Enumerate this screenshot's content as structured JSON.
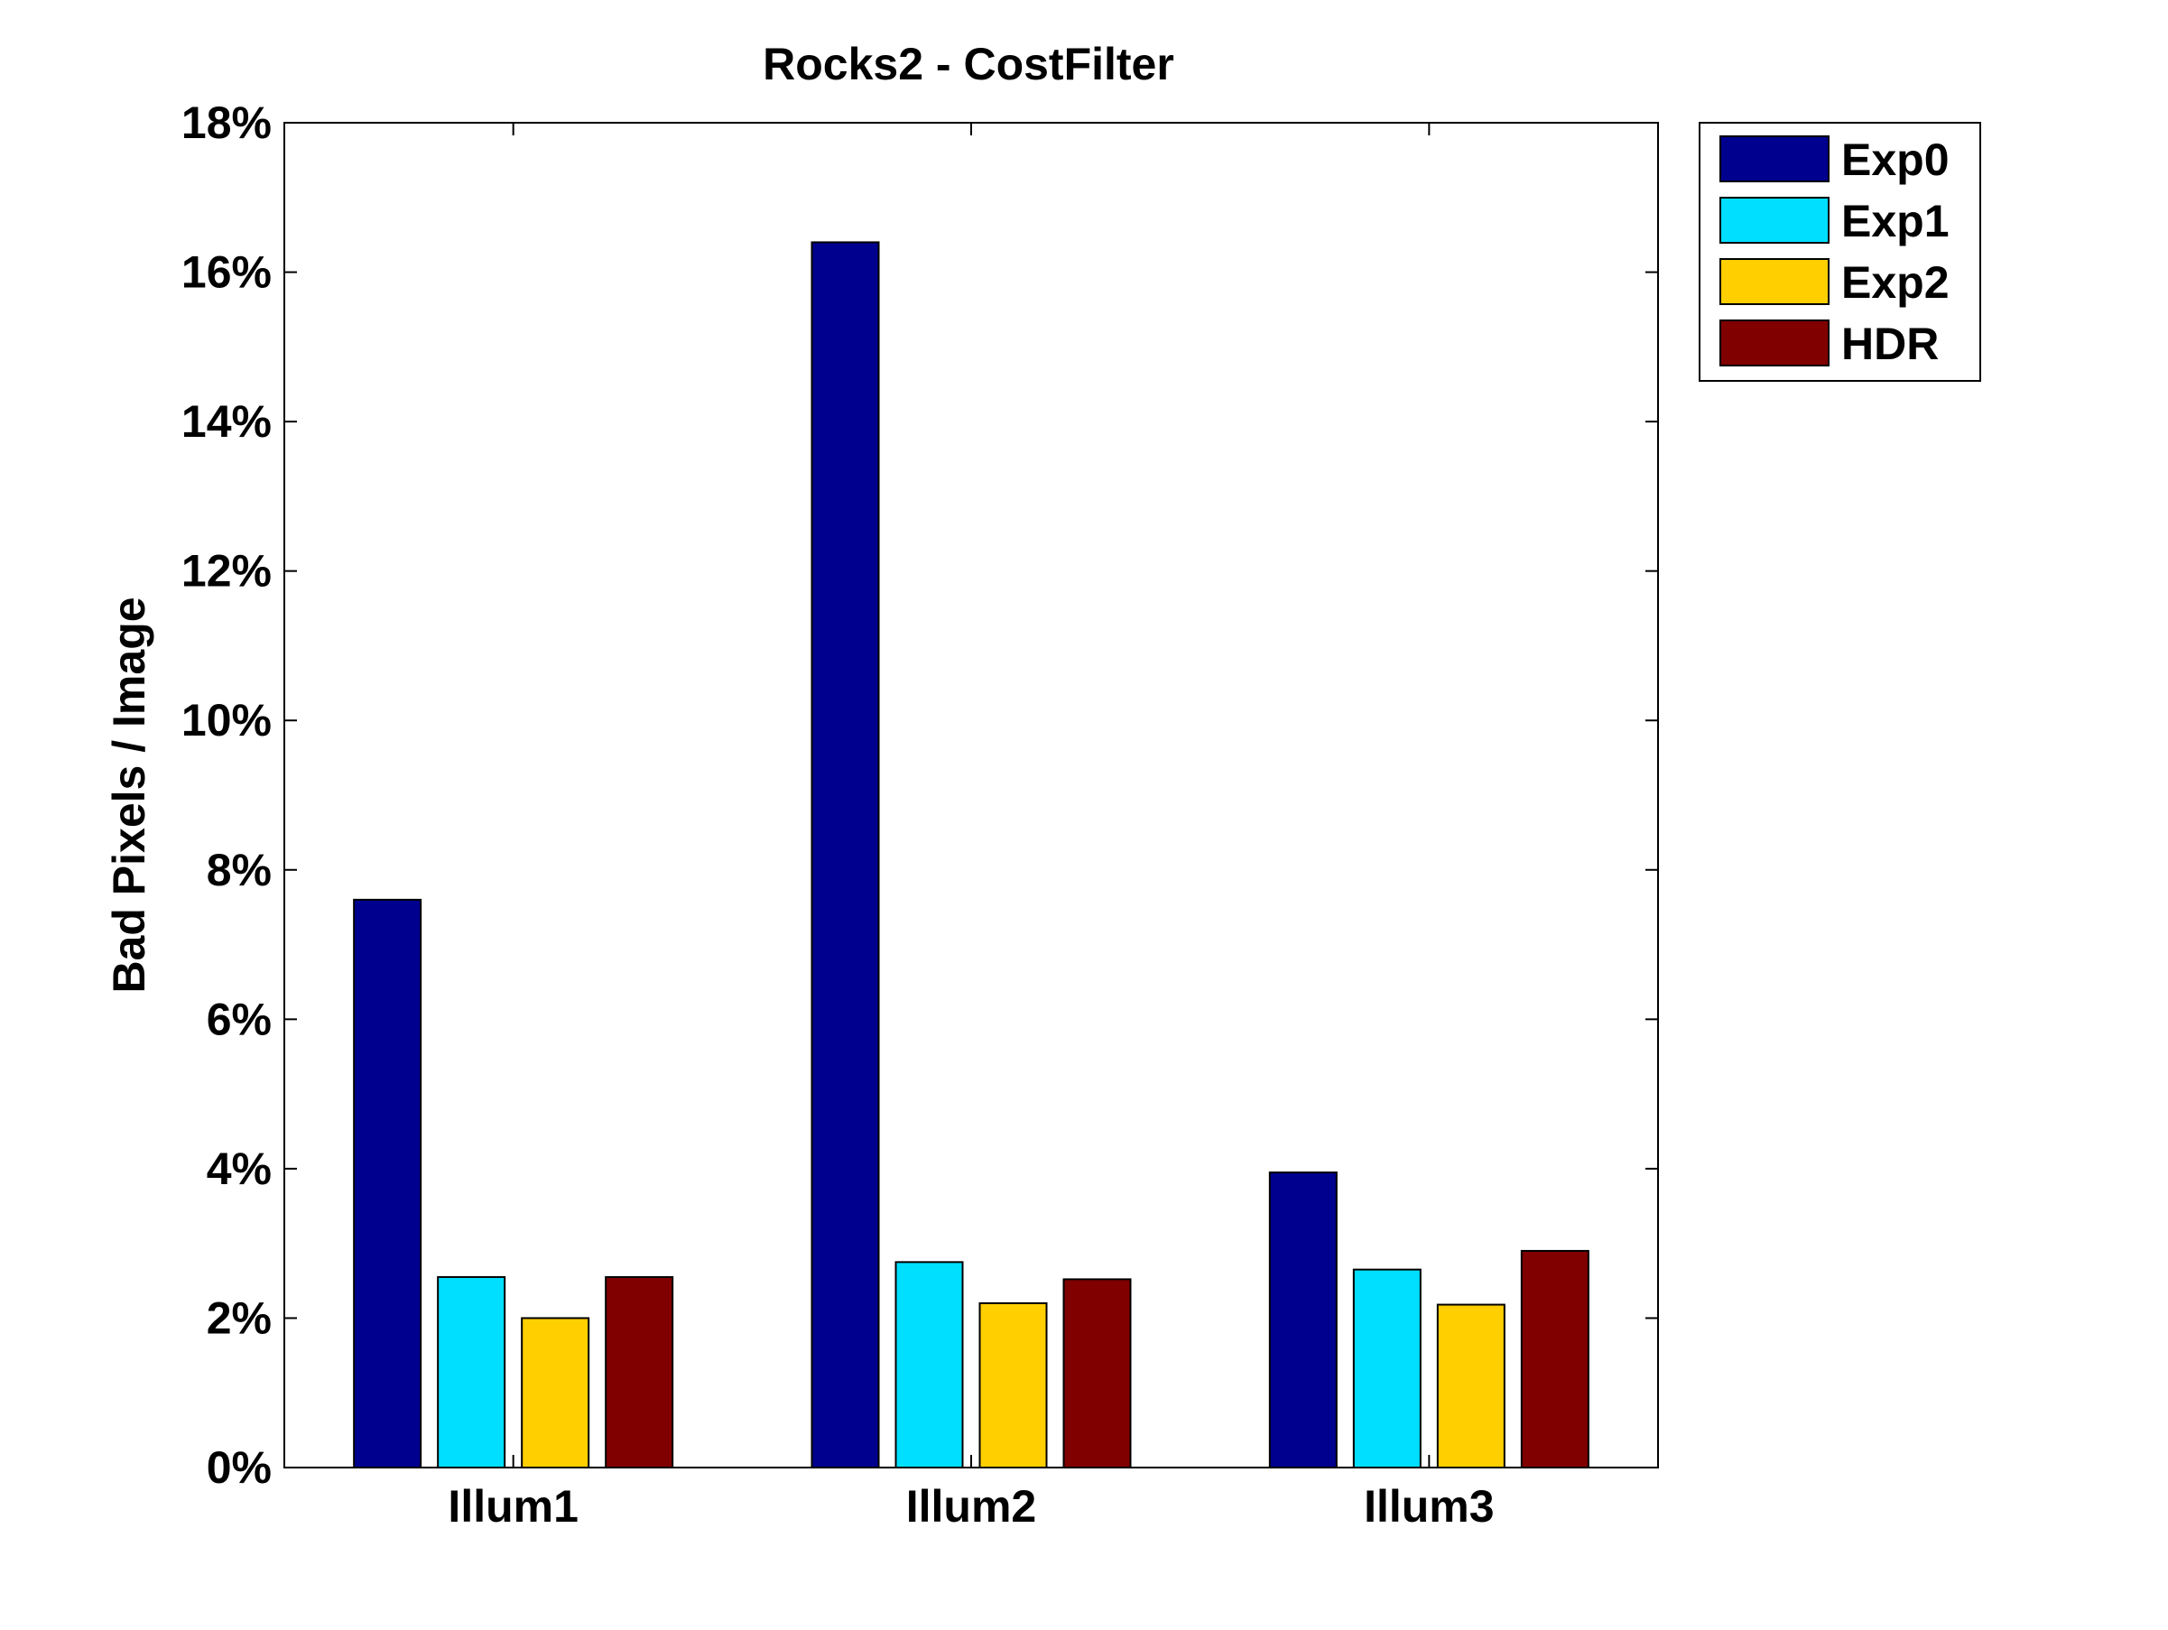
{
  "chart_data": {
    "type": "bar",
    "title": "Rocks2 - CostFilter",
    "xlabel": "",
    "ylabel": "Bad Pixels / Image",
    "categories": [
      "Illum1",
      "Illum2",
      "Illum3"
    ],
    "series": [
      {
        "name": "Exp0",
        "color": "#00008f",
        "values": [
          7.6,
          16.4,
          3.95
        ]
      },
      {
        "name": "Exp1",
        "color": "#00dfff",
        "values": [
          2.55,
          2.75,
          2.65
        ]
      },
      {
        "name": "Exp2",
        "color": "#ffcf00",
        "values": [
          2.0,
          2.2,
          2.18
        ]
      },
      {
        "name": "HDR",
        "color": "#800000",
        "values": [
          2.55,
          2.52,
          2.9
        ]
      }
    ],
    "ylim": [
      0,
      18
    ],
    "yticks": [
      0,
      2,
      4,
      6,
      8,
      10,
      12,
      14,
      16,
      18
    ],
    "ytick_labels": [
      "0%",
      "2%",
      "4%",
      "6%",
      "8%",
      "10%",
      "12%",
      "14%",
      "16%",
      "18%"
    ],
    "grid": false,
    "legend_position": "outside-top-right"
  }
}
